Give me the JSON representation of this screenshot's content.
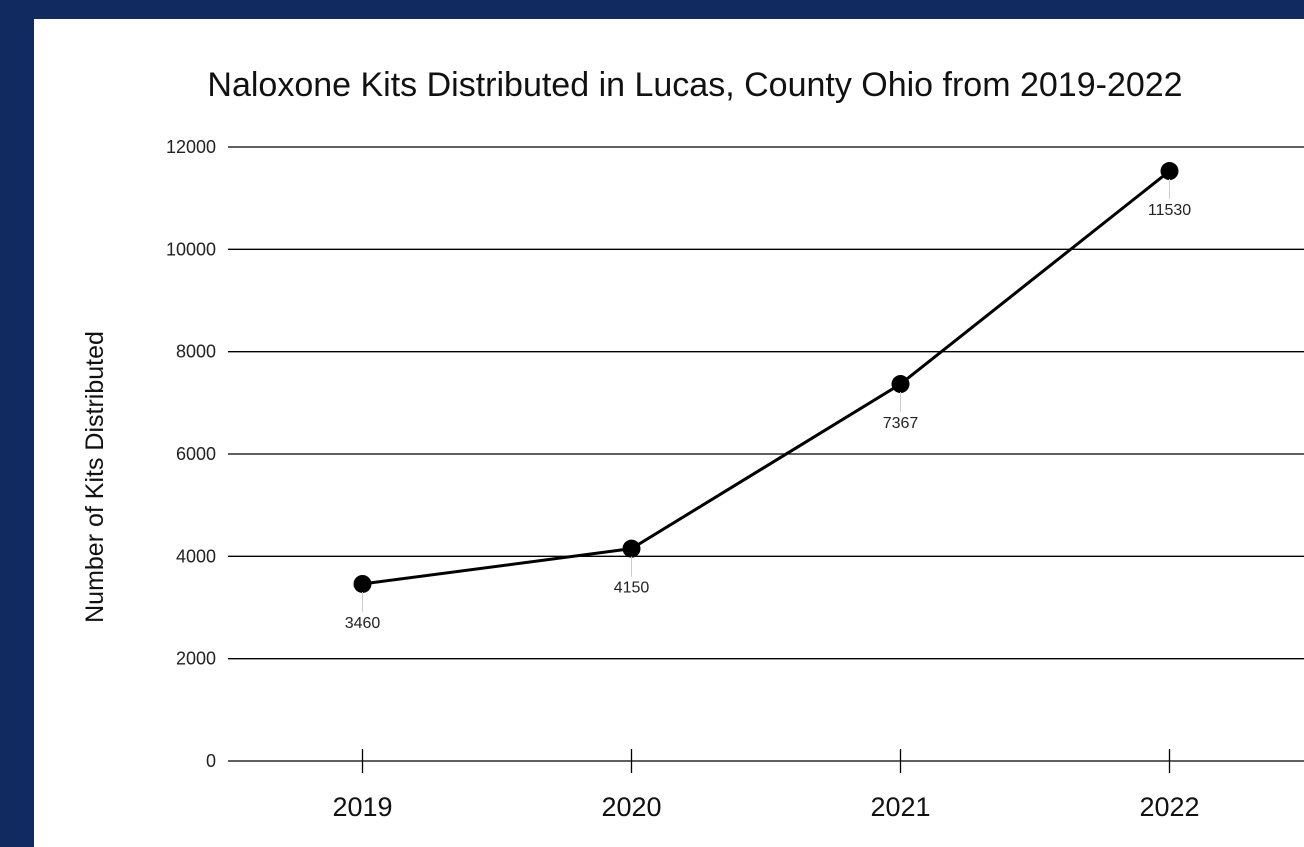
{
  "colors": {
    "frame": "#112a60",
    "card": "#ffffff",
    "line": "#000000",
    "grid": "#000000",
    "label_tick": "#cccccc"
  },
  "chart_data": {
    "type": "line",
    "title": "Naloxone Kits Distributed in Lucas, County Ohio from 2019-2022",
    "ylabel": "Number of Kits Distributed",
    "xlabel": "",
    "categories": [
      "2019",
      "2020",
      "2021",
      "2022"
    ],
    "series": [
      {
        "values": [
          3460,
          4150,
          7367,
          11530
        ],
        "data_labels": [
          "3460",
          "4150",
          "7367",
          "11530"
        ]
      }
    ],
    "ylim": [
      0,
      12000
    ],
    "yticks": [
      0,
      2000,
      4000,
      6000,
      8000,
      10000,
      12000
    ],
    "ytick_labels": [
      "0",
      "2000",
      "4000",
      "6000",
      "8000",
      "10000",
      "12000"
    ],
    "grid": true,
    "legend": "none"
  }
}
